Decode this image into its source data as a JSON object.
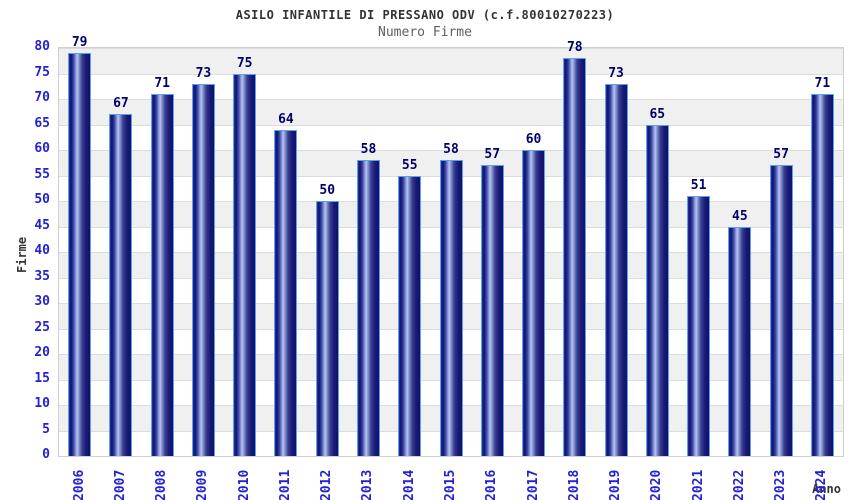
{
  "header": {
    "title": "ASILO INFANTILE DI PRESSANO ODV (c.f.80010270223)",
    "subtitle": "Numero Firme"
  },
  "axes": {
    "y_label": "Firme",
    "x_label": "Anno",
    "y_ticks": [
      0,
      5,
      10,
      15,
      20,
      25,
      30,
      35,
      40,
      45,
      50,
      55,
      60,
      65,
      70,
      75,
      80
    ]
  },
  "colors": {
    "title_text": "#333333",
    "subtitle_text": "#606060",
    "axis_tick_text": "#2222d2",
    "value_label_text": "#00006b",
    "bar_outline": "#58a2ee",
    "bar_dark": "#12126a",
    "bar_highlight": "#b9c3ee",
    "band_gray": "#f0f0f0",
    "band_white": "#ffffff",
    "grid_line": "#dcdcdc",
    "plot_border": "#cfcfcf"
  },
  "chart_data": {
    "type": "bar",
    "title": "ASILO INFANTILE DI PRESSANO ODV (c.f.80010270223)",
    "subtitle": "Numero Firme",
    "xlabel": "Anno",
    "ylabel": "Firme",
    "categories": [
      "2006",
      "2007",
      "2008",
      "2009",
      "2010",
      "2011",
      "2012",
      "2013",
      "2014",
      "2015",
      "2016",
      "2017",
      "2018",
      "2019",
      "2020",
      "2021",
      "2022",
      "2023",
      "2024"
    ],
    "values": [
      79,
      67,
      71,
      73,
      75,
      64,
      50,
      58,
      55,
      58,
      57,
      60,
      78,
      73,
      65,
      51,
      45,
      57,
      71
    ],
    "ylim": [
      0,
      80
    ],
    "ytick_step": 5,
    "grid": "horizontal-lines-every-5",
    "background_bands": "alternating white/gray every 5 units, gray on 5-10,15-20,...,75-80",
    "legend": "none",
    "bar_value_labels": "shown above each bar",
    "x_tick_rotation": "vertical (reads bottom to top)"
  }
}
